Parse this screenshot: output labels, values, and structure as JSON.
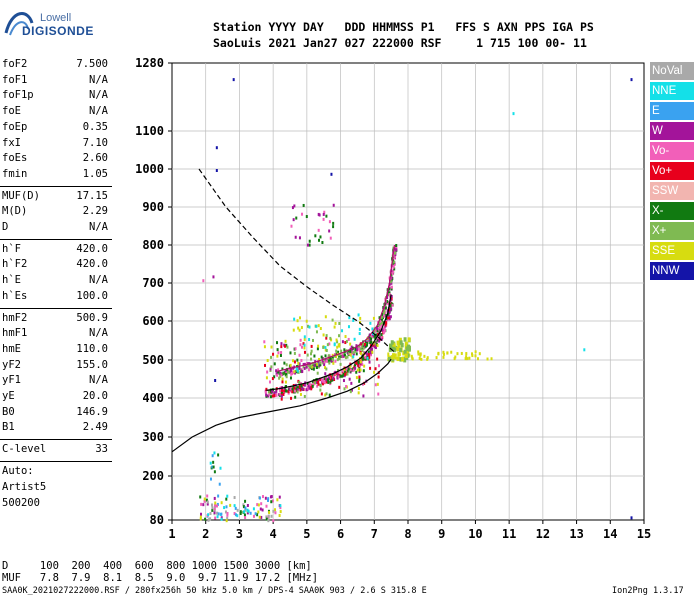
{
  "logo": {
    "brand_top": "Lowell",
    "brand_bottom": "DIGISONDE"
  },
  "header": {
    "line1": "Station YYYY DAY   DDD HHMMSS P1   FFS S AXN PPS IGA PS",
    "line2": "SaoLuis 2021 Jan27 027 222000 RSF     1 715 100 00- 11"
  },
  "params": {
    "group1": [
      {
        "k": "foF2",
        "v": "7.500"
      },
      {
        "k": "foF1",
        "v": "N/A"
      },
      {
        "k": "foF1p",
        "v": "N/A"
      },
      {
        "k": "foE",
        "v": "N/A"
      },
      {
        "k": "foEp",
        "v": "0.35"
      },
      {
        "k": "fxI",
        "v": "7.10"
      },
      {
        "k": "foEs",
        "v": "2.60"
      },
      {
        "k": "fmin",
        "v": "1.05"
      }
    ],
    "group2": [
      {
        "k": "MUF(D)",
        "v": "17.15"
      },
      {
        "k": "M(D)",
        "v": "2.29"
      },
      {
        "k": "D",
        "v": "N/A"
      }
    ],
    "group3": [
      {
        "k": "h`F",
        "v": "420.0"
      },
      {
        "k": "h`F2",
        "v": "420.0"
      },
      {
        "k": "h`E",
        "v": "N/A"
      },
      {
        "k": "h`Es",
        "v": "100.0"
      }
    ],
    "group4": [
      {
        "k": "hmF2",
        "v": "500.9"
      },
      {
        "k": "hmF1",
        "v": "N/A"
      },
      {
        "k": "hmE",
        "v": "110.0"
      },
      {
        "k": "yF2",
        "v": "155.0"
      },
      {
        "k": "yF1",
        "v": "N/A"
      },
      {
        "k": "yE",
        "v": "20.0"
      },
      {
        "k": "B0",
        "v": "146.9"
      },
      {
        "k": "B1",
        "v": "2.49"
      }
    ],
    "clevel": {
      "k": "C-level",
      "v": "33"
    },
    "auto_label": "Auto:",
    "artist": "Artist5",
    "code": "500200"
  },
  "legend": [
    {
      "label": "NoVal",
      "color": "#a9a9a9"
    },
    {
      "label": "NNE",
      "color": "#14e0e8"
    },
    {
      "label": "E",
      "color": "#3aa2f0"
    },
    {
      "label": "W",
      "color": "#a3149a"
    },
    {
      "label": "Vo-",
      "color": "#f25fb9"
    },
    {
      "label": "Vo+",
      "color": "#e8001c"
    },
    {
      "label": "SSW",
      "color": "#f2b5b0"
    },
    {
      "label": "X-",
      "color": "#117a11"
    },
    {
      "label": "X+",
      "color": "#7fba52"
    },
    {
      "label": "SSE",
      "color": "#d7dc10"
    },
    {
      "label": "NNW",
      "color": "#1414a8"
    }
  ],
  "bottom": {
    "d_line": "D     100  200  400  600  800 1000 1500 3000 [km]",
    "muf_line": "MUF   7.8  7.9  8.1  8.5  9.0  9.7 11.9 17.2 [MHz]"
  },
  "footer": {
    "text": "SAA0K_2021027222000.RSF / 280fx256h 50 kHz 5.0 km / DPS-4 SAA0K 903 / 2.6 S 315.8 E",
    "version": "Ion2Png 1.3.17"
  },
  "chart_data": {
    "type": "scatter",
    "x_ticks": [
      1,
      2,
      3,
      4,
      5,
      6,
      7,
      8,
      9,
      10,
      11,
      12,
      13,
      14,
      15
    ],
    "y_ticks": [
      80,
      200,
      300,
      400,
      500,
      600,
      700,
      800,
      900,
      1000,
      1100,
      1280
    ],
    "xlim": [
      1,
      15
    ],
    "ylim": [
      80,
      1280
    ],
    "grid": true,
    "series": [
      {
        "kind": "profile",
        "values": [
          [
            1.0,
            262
          ],
          [
            1.6,
            300
          ],
          [
            2.3,
            330
          ],
          [
            3.0,
            350
          ],
          [
            3.9,
            365
          ],
          [
            4.8,
            380
          ],
          [
            5.6,
            400
          ],
          [
            6.2,
            418
          ],
          [
            6.7,
            440
          ],
          [
            7.1,
            465
          ],
          [
            7.4,
            490
          ],
          [
            7.5,
            502
          ]
        ]
      },
      {
        "kind": "x-trace",
        "values": [
          [
            4.1,
            470
          ],
          [
            4.6,
            480
          ],
          [
            5.1,
            490
          ],
          [
            5.6,
            505
          ],
          [
            6.1,
            520
          ],
          [
            6.5,
            535
          ],
          [
            6.8,
            555
          ],
          [
            7.1,
            590
          ],
          [
            7.3,
            640
          ],
          [
            7.45,
            700
          ],
          [
            7.55,
            770
          ],
          [
            7.6,
            800
          ]
        ]
      },
      {
        "kind": "o-trace",
        "values": [
          [
            3.8,
            420
          ],
          [
            4.2,
            425
          ],
          [
            4.6,
            432
          ],
          [
            5.0,
            440
          ],
          [
            5.4,
            452
          ],
          [
            5.8,
            465
          ],
          [
            6.2,
            482
          ],
          [
            6.6,
            505
          ],
          [
            6.9,
            535
          ],
          [
            7.2,
            575
          ],
          [
            7.4,
            620
          ],
          [
            7.5,
            670
          ]
        ]
      },
      {
        "kind": "dashed",
        "values": [
          [
            1.8,
            1000
          ],
          [
            2.6,
            900
          ],
          [
            3.4,
            820
          ],
          [
            4.2,
            745
          ],
          [
            5.0,
            690
          ],
          [
            5.8,
            640
          ],
          [
            6.5,
            600
          ],
          [
            7.1,
            560
          ],
          [
            7.6,
            520
          ]
        ]
      }
    ]
  }
}
